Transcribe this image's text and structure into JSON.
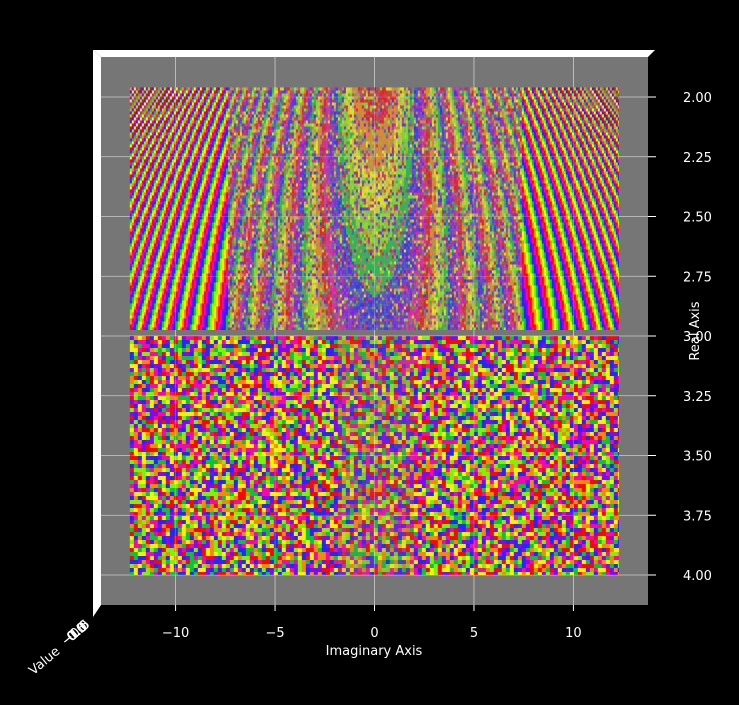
{
  "chart_data": {
    "type": "heatmap",
    "projection": "3d-surface-top-view",
    "xlabel": "Imaginary Axis",
    "ylabel": "Real Axis",
    "zlabel": "Value",
    "xlim": [
      -13.75,
      13.75
    ],
    "ylim": [
      1.96,
      4.13
    ],
    "data_x_range": [
      -12.3,
      12.3
    ],
    "data_y_range": [
      1.96,
      4.0
    ],
    "x_ticks": [
      -10,
      -5,
      0,
      5,
      10
    ],
    "x_tick_labels": [
      "−10",
      "−5",
      "0",
      "5",
      "10"
    ],
    "y_ticks": [
      2.0,
      2.25,
      2.5,
      2.75,
      3.0,
      3.25,
      3.5,
      3.75,
      4.0
    ],
    "y_tick_labels": [
      "2.00",
      "2.25",
      "2.50",
      "2.75",
      "3.00",
      "3.25",
      "3.50",
      "3.75",
      "4.00"
    ],
    "z_tick_labels": [
      "−1.0",
      "−0.5",
      "0.0",
      "0.5",
      "1.0"
    ],
    "colormap": "prism",
    "regions": [
      {
        "y_range": [
          1.96,
          3.0
        ],
        "pattern": "smooth-oscillating",
        "bands_around_x": [
          -8.5,
          8.5
        ]
      },
      {
        "y_range": [
          3.0,
          4.0
        ],
        "pattern": "noise"
      }
    ],
    "grid": true,
    "pane_color": "#767676",
    "background": "#000000",
    "palette": [
      "#ff0000",
      "#ff8c00",
      "#ffff00",
      "#7fff00",
      "#00cc33",
      "#2020ff",
      "#8000ff",
      "#ff00b0"
    ]
  }
}
